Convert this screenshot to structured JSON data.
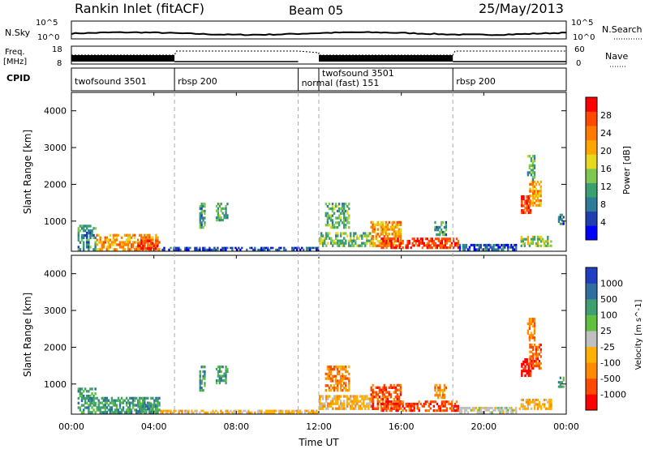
{
  "header": {
    "station": "Rankin Inlet (fitACF)",
    "beam": "Beam 05",
    "date": "25/May/2013"
  },
  "sky_panel": {
    "left_label": "N.Sky",
    "right_label": "N.Search",
    "ticks_left": [
      "10^5",
      "10^0"
    ],
    "ticks_right": [
      "10^5",
      "10^0"
    ]
  },
  "freq_panel": {
    "left_label_1": "Freq.",
    "left_label_2": "[MHz]",
    "right_label": "Nave",
    "ticks_left": [
      "18",
      "8"
    ],
    "ticks_right": [
      "60",
      "0"
    ]
  },
  "cpid_panel": {
    "label": "CPID",
    "programs": [
      {
        "name": "twofsound 3501",
        "start": 0.0,
        "end": 5.0
      },
      {
        "name": "rbsp 200",
        "start": 5.0,
        "end": 11.0
      },
      {
        "name": "normal (fast) 151",
        "start": 11.0,
        "end": 12.0
      },
      {
        "name": "twofsound 3501",
        "start": 12.0,
        "end": 18.5
      },
      {
        "name": "rbsp 200",
        "start": 18.5,
        "end": 24.0
      }
    ]
  },
  "colors": {
    "power": [
      "#0000ff",
      "#1f3fb0",
      "#2e7c9a",
      "#3aa070",
      "#7ec850",
      "#e6d81e",
      "#ffa500",
      "#ff7a00",
      "#ff4a00",
      "#ff0000"
    ],
    "velocity": [
      "#ff0000",
      "#ff4a00",
      "#ff8a00",
      "#ffb000",
      "#c0c0c0",
      "#60c040",
      "#3f9f6f",
      "#2e6fa0",
      "#1f3fc0"
    ]
  },
  "chart_data": [
    {
      "type": "heatmap",
      "name": "power",
      "xlabel": "",
      "ylabel": "Slant Range [km]",
      "xlim": [
        0,
        24
      ],
      "ylim": [
        180,
        4500
      ],
      "yticks": [
        "1000",
        "2000",
        "3000",
        "4000"
      ],
      "colorbar_label": "Power [dB]",
      "colorbar_ticks": [
        "4",
        "8",
        "12",
        "16",
        "20",
        "24",
        "28"
      ],
      "colorbar_range": [
        0,
        32
      ],
      "regions": [
        {
          "t0": 0.3,
          "t1": 1.2,
          "r0": 200,
          "r1": 900,
          "v": 10
        },
        {
          "t0": 1.2,
          "t1": 4.3,
          "r0": 200,
          "r1": 650,
          "v": 22
        },
        {
          "t0": 3.2,
          "t1": 4.2,
          "r0": 220,
          "r1": 500,
          "v": 28
        },
        {
          "t0": 4.3,
          "t1": 12.0,
          "r0": 200,
          "r1": 300,
          "v": 5
        },
        {
          "t0": 6.2,
          "t1": 6.5,
          "r0": 800,
          "r1": 1500,
          "v": 10
        },
        {
          "t0": 7.0,
          "t1": 7.6,
          "r0": 1000,
          "r1": 1500,
          "v": 12
        },
        {
          "t0": 12.0,
          "t1": 14.6,
          "r0": 300,
          "r1": 700,
          "v": 14
        },
        {
          "t0": 12.3,
          "t1": 13.5,
          "r0": 800,
          "r1": 1500,
          "v": 12
        },
        {
          "t0": 14.5,
          "t1": 16.0,
          "r0": 300,
          "r1": 1000,
          "v": 22
        },
        {
          "t0": 15.0,
          "t1": 18.8,
          "r0": 250,
          "r1": 550,
          "v": 28
        },
        {
          "t0": 17.6,
          "t1": 18.2,
          "r0": 600,
          "r1": 1000,
          "v": 10
        },
        {
          "t0": 18.8,
          "t1": 21.6,
          "r0": 200,
          "r1": 380,
          "v": 6
        },
        {
          "t0": 21.7,
          "t1": 23.3,
          "r0": 300,
          "r1": 600,
          "v": 16
        },
        {
          "t0": 21.8,
          "t1": 22.3,
          "r0": 1200,
          "r1": 1700,
          "v": 28
        },
        {
          "t0": 22.2,
          "t1": 22.8,
          "r0": 1400,
          "r1": 2100,
          "v": 22
        },
        {
          "t0": 22.1,
          "t1": 22.5,
          "r0": 2100,
          "r1": 2800,
          "v": 12
        },
        {
          "t0": 23.6,
          "t1": 23.9,
          "r0": 900,
          "r1": 1200,
          "v": 8
        }
      ]
    },
    {
      "type": "heatmap",
      "name": "velocity",
      "xlabel": "Time UT",
      "ylabel": "Slant Range [km]",
      "xlim": [
        0,
        24
      ],
      "ylim": [
        180,
        4500
      ],
      "xticks": [
        "00:00",
        "04:00",
        "08:00",
        "12:00",
        "16:00",
        "20:00",
        "00:00"
      ],
      "yticks": [
        "1000",
        "2000",
        "3000",
        "4000"
      ],
      "colorbar_label": "Velocity [m s^-1]",
      "colorbar_ticks": [
        "1000",
        "500",
        "100",
        "25",
        "-25",
        "-100",
        "-500",
        "-1000"
      ],
      "regions": [
        {
          "t0": 0.3,
          "t1": 1.2,
          "r0": 200,
          "r1": 900,
          "v": 6
        },
        {
          "t0": 1.2,
          "t1": 4.3,
          "r0": 200,
          "r1": 650,
          "v": 6
        },
        {
          "t0": 3.2,
          "t1": 4.2,
          "r0": 220,
          "r1": 500,
          "v": 6
        },
        {
          "t0": 4.3,
          "t1": 12.0,
          "r0": 200,
          "r1": 300,
          "v": 3
        },
        {
          "t0": 6.2,
          "t1": 6.5,
          "r0": 800,
          "r1": 1500,
          "v": 6
        },
        {
          "t0": 7.0,
          "t1": 7.6,
          "r0": 1000,
          "r1": 1500,
          "v": 6
        },
        {
          "t0": 12.0,
          "t1": 14.6,
          "r0": 300,
          "r1": 700,
          "v": 3
        },
        {
          "t0": 12.3,
          "t1": 13.5,
          "r0": 800,
          "r1": 1500,
          "v": 2
        },
        {
          "t0": 14.5,
          "t1": 16.0,
          "r0": 300,
          "r1": 1000,
          "v": 1
        },
        {
          "t0": 15.0,
          "t1": 18.8,
          "r0": 250,
          "r1": 550,
          "v": 1
        },
        {
          "t0": 17.6,
          "t1": 18.2,
          "r0": 600,
          "r1": 1000,
          "v": 2
        },
        {
          "t0": 18.8,
          "t1": 21.6,
          "r0": 200,
          "r1": 380,
          "v": 4
        },
        {
          "t0": 21.7,
          "t1": 23.3,
          "r0": 300,
          "r1": 600,
          "v": 3
        },
        {
          "t0": 21.8,
          "t1": 22.3,
          "r0": 1200,
          "r1": 1700,
          "v": 0
        },
        {
          "t0": 22.2,
          "t1": 22.8,
          "r0": 1400,
          "r1": 2100,
          "v": 1
        },
        {
          "t0": 22.1,
          "t1": 22.5,
          "r0": 2100,
          "r1": 2800,
          "v": 2
        },
        {
          "t0": 23.6,
          "t1": 23.9,
          "r0": 900,
          "r1": 1200,
          "v": 6
        }
      ]
    }
  ]
}
